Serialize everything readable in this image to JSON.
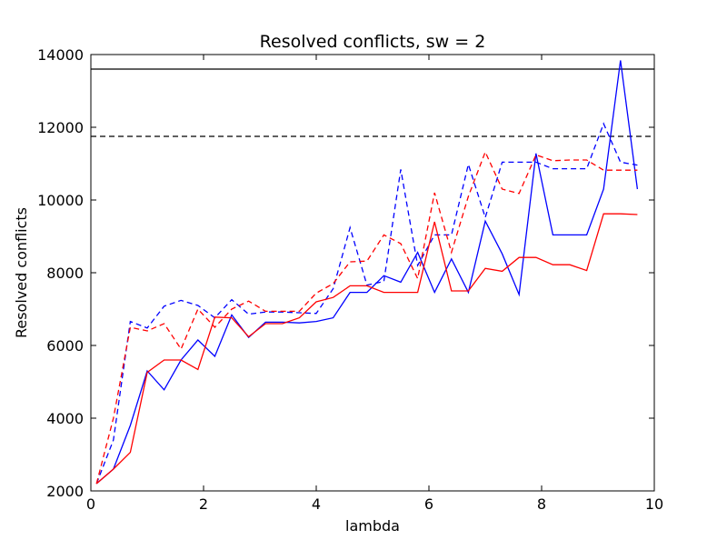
{
  "chart_data": {
    "type": "line",
    "title": "Resolved conflicts, sw = 2",
    "xlabel": "lambda",
    "ylabel": "Resolved conflicts",
    "xlim": [
      0,
      10
    ],
    "ylim": [
      2000,
      14000
    ],
    "xticks": [
      0,
      2,
      4,
      6,
      8,
      10
    ],
    "yticks": [
      2000,
      4000,
      6000,
      8000,
      10000,
      12000,
      14000
    ],
    "grid": false,
    "legend": "none",
    "x": [
      0.1,
      0.4,
      0.7,
      1.0,
      1.3,
      1.6,
      1.9,
      2.2,
      2.5,
      2.8,
      3.1,
      3.4,
      3.7,
      4.0,
      4.3,
      4.6,
      4.9,
      5.2,
      5.5,
      5.8,
      6.1,
      6.4,
      6.7,
      7.0,
      7.3,
      7.6,
      7.9,
      8.2,
      8.5,
      8.8,
      9.1,
      9.4,
      9.7
    ],
    "series": [
      {
        "color": "#0000ff",
        "dash": "solid",
        "values": [
          2200,
          2600,
          3800,
          5300,
          4780,
          5600,
          6150,
          5700,
          6840,
          6220,
          6640,
          6640,
          6620,
          6660,
          6760,
          7460,
          7460,
          7920,
          7740,
          8560,
          7460,
          8380,
          7460,
          9420,
          8520,
          7400,
          11280,
          9040,
          9040,
          9040,
          10300,
          13840,
          10300
        ]
      },
      {
        "color": "#0000ff",
        "dash": "dashed",
        "values": [
          2200,
          3400,
          6660,
          6480,
          7080,
          7240,
          7100,
          6760,
          7260,
          6860,
          6920,
          6920,
          6900,
          6880,
          7560,
          9240,
          7660,
          7760,
          10840,
          8200,
          9040,
          9040,
          10980,
          9520,
          11040,
          11040,
          11040,
          10860,
          10860,
          10860,
          12100,
          11040,
          10960
        ]
      },
      {
        "color": "#ff0000",
        "dash": "solid",
        "values": [
          2200,
          2600,
          3060,
          5260,
          5600,
          5600,
          5340,
          6780,
          6760,
          6240,
          6600,
          6600,
          6760,
          7200,
          7320,
          7640,
          7640,
          7460,
          7460,
          7460,
          9400,
          7500,
          7500,
          8120,
          8040,
          8420,
          8420,
          8220,
          8220,
          8060,
          9620,
          9620,
          9600
        ]
      },
      {
        "color": "#ff0000",
        "dash": "dashed",
        "values": [
          2200,
          4000,
          6500,
          6400,
          6600,
          5900,
          7000,
          6500,
          7000,
          7220,
          6940,
          6940,
          6940,
          7440,
          7700,
          8300,
          8320,
          9040,
          8800,
          7840,
          10200,
          8560,
          10100,
          11320,
          10300,
          10180,
          11240,
          11080,
          11100,
          11100,
          10820,
          10820,
          10820
        ]
      }
    ],
    "reference_lines": [
      {
        "y": 13600,
        "color": "#000000",
        "dash": "solid"
      },
      {
        "y": 11750,
        "color": "#000000",
        "dash": "dashed"
      }
    ]
  }
}
